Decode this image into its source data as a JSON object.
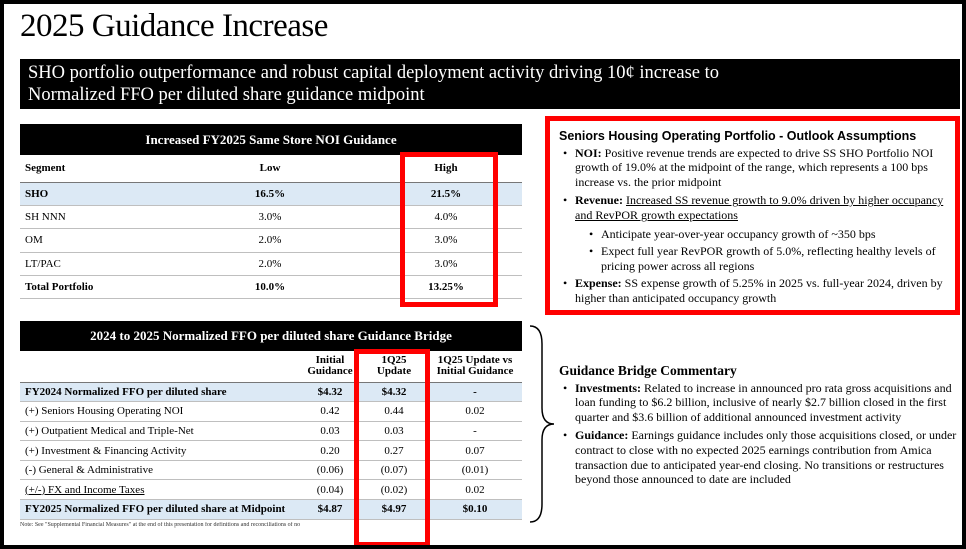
{
  "title": "2025 Guidance Increase",
  "subtitle": {
    "line1": "SHO portfolio outperformance and robust capital deployment activity driving 10¢ increase to",
    "line2": "Normalized FFO per diluted share guidance midpoint"
  },
  "noi_table": {
    "title": "Increased FY2025 Same Store NOI Guidance",
    "columns": [
      "Segment",
      "Low",
      "High"
    ],
    "rows": [
      {
        "segment": "SHO",
        "low": "16.5%",
        "high": "21.5%"
      },
      {
        "segment": "SH NNN",
        "low": "3.0%",
        "high": "4.0%"
      },
      {
        "segment": "OM",
        "low": "2.0%",
        "high": "3.0%"
      },
      {
        "segment": "LT/PAC",
        "low": "2.0%",
        "high": "3.0%"
      },
      {
        "segment": "Total Portfolio",
        "low": "10.0%",
        "high": "13.25%"
      }
    ]
  },
  "ffo_table": {
    "title": "2024 to 2025 Normalized FFO per diluted share Guidance Bridge",
    "columns": [
      {
        "line1": "Initial",
        "line2": "Guidance"
      },
      {
        "line1": "1Q25",
        "line2": "Update"
      },
      {
        "line1": "1Q25 Update vs",
        "line2": "Initial Guidance"
      }
    ],
    "rows": [
      {
        "label": "FY2024 Normalized FFO per diluted share",
        "initial": "$4.32",
        "update": "$4.32",
        "diff": "-"
      },
      {
        "label": "(+) Seniors Housing Operating NOI",
        "initial": "0.42",
        "update": "0.44",
        "diff": "0.02"
      },
      {
        "label": "(+) Outpatient Medical and Triple-Net",
        "initial": "0.03",
        "update": "0.03",
        "diff": "-"
      },
      {
        "label": "(+) Investment & Financing Activity",
        "initial": "0.20",
        "update": "0.27",
        "diff": "0.07"
      },
      {
        "label": "(-) General & Administrative",
        "initial": "(0.06)",
        "update": "(0.07)",
        "diff": "(0.01)"
      },
      {
        "label": "(+/-) FX and Income Taxes",
        "initial": "(0.04)",
        "update": "(0.02)",
        "diff": "0.02"
      },
      {
        "label": "FY2025 Normalized FFO per diluted share at Midpoint",
        "initial": "$4.87",
        "update": "$4.97",
        "diff": "$0.10"
      }
    ]
  },
  "footnote": "Note: See \"Supplemental Financial Measures\" at the end of this presentation for definitions and reconciliations of no",
  "outlook": {
    "title": "Seniors Housing Operating Portfolio - Outlook Assumptions",
    "noi_lead": "NOI:",
    "noi_text": "Positive revenue trends are expected to drive SS SHO Portfolio NOI growth of 19.0% at the midpoint of the range, which represents a 100 bps increase vs. the prior midpoint",
    "revenue_lead": "Revenue:",
    "revenue_text": "Increased SS revenue growth to 9.0% driven by higher occupancy and RevPOR growth expectations",
    "revenue_sub1": "Anticipate year-over-year occupancy growth of ~350 bps",
    "revenue_sub2": "Expect full year RevPOR growth of 5.0%, reflecting healthy levels of pricing power across all regions",
    "expense_lead": "Expense:",
    "expense_text": "SS expense growth of 5.25% in 2025 vs. full-year 2024, driven by higher than anticipated occupancy growth"
  },
  "bridge_commentary": {
    "title": "Guidance Bridge Commentary",
    "investments_lead": "Investments:",
    "investments_text": "Related to increase in announced pro rata gross acquisitions and loan funding to $6.2 billion, inclusive of nearly $2.7 billion closed in the first quarter and $3.6 billion of additional announced investment activity",
    "guidance_lead": "Guidance:",
    "guidance_text": "Earnings guidance includes only those acquisitions closed, or under contract to close with no expected 2025 earnings contribution from Amica transaction due to anticipated year-end closing. No transitions or restructures beyond those announced to date are included"
  },
  "colors": {
    "highlight_row": "#dce9f5",
    "annotation_red": "#ff0000",
    "header_black": "#000000"
  }
}
